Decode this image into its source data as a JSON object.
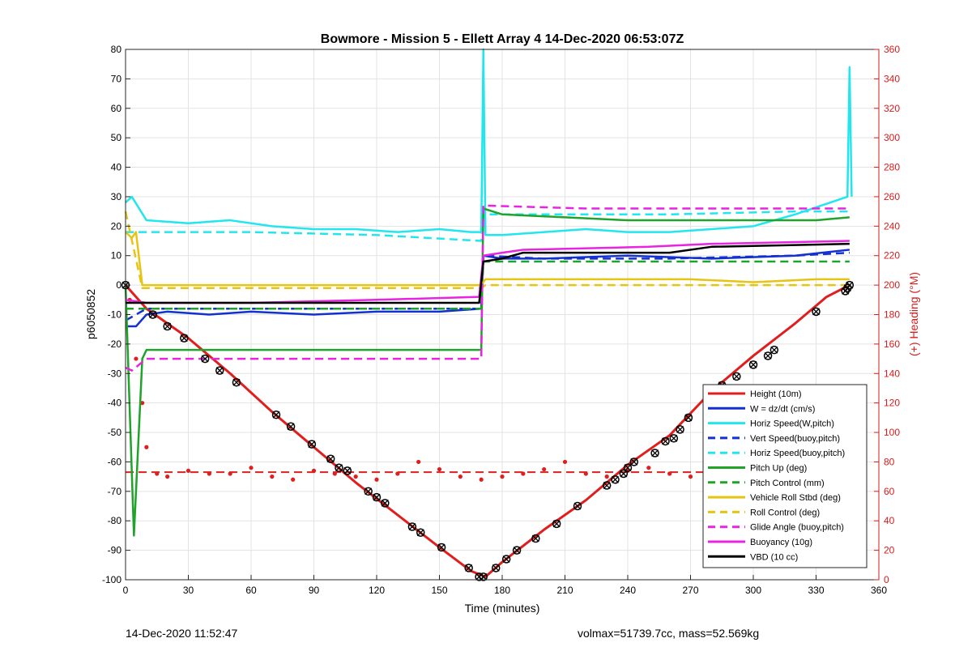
{
  "chart_data": {
    "type": "line",
    "title": "Bowmore - Mission 5 - Ellett Array 4 14-Dec-2020 06:53:07Z",
    "xlabel": "Time (minutes)",
    "ylabel": "p6050852",
    "ylabel_right": "(+) Heading (°M)",
    "xlim": [
      0,
      360
    ],
    "ylim": [
      -100,
      80
    ],
    "ylim_right": [
      0,
      360
    ],
    "xticks": [
      0,
      30,
      60,
      90,
      120,
      150,
      180,
      210,
      240,
      270,
      300,
      330,
      360
    ],
    "yticks": [
      -100,
      -90,
      -80,
      -70,
      -60,
      -50,
      -40,
      -30,
      -20,
      -10,
      0,
      10,
      20,
      30,
      40,
      50,
      60,
      70,
      80
    ],
    "yticks_right": [
      0,
      20,
      40,
      60,
      80,
      100,
      120,
      140,
      160,
      180,
      200,
      220,
      240,
      260,
      280,
      300,
      320,
      340,
      360
    ],
    "grid": true,
    "legend_position": "bottom-right",
    "series": [
      {
        "name": "Height (10m)",
        "color": "#e01e1e",
        "style": "solid",
        "width": 3,
        "x": [
          0,
          10,
          30,
          50,
          70,
          90,
          110,
          130,
          150,
          165,
          172,
          180,
          200,
          220,
          240,
          260,
          280,
          300,
          320,
          335,
          346
        ],
        "y": [
          0,
          -8,
          -18,
          -30,
          -43,
          -55,
          -67,
          -78,
          -89,
          -97,
          -99,
          -94,
          -83,
          -73,
          -61,
          -51,
          -36,
          -24,
          -13,
          -4,
          0
        ]
      },
      {
        "name": "W = dz/dt (cm/s)",
        "color": "#1330d0",
        "style": "solid",
        "width": 2.5,
        "x": [
          0,
          5,
          10,
          20,
          40,
          60,
          90,
          120,
          150,
          170,
          171,
          180,
          200,
          240,
          280,
          320,
          346
        ],
        "y": [
          -14,
          -14,
          -10,
          -9,
          -10,
          -9,
          -10,
          -9,
          -9,
          -8,
          10,
          9,
          9,
          10,
          9,
          10,
          12
        ]
      },
      {
        "name": "Horiz Speed(W,pitch)",
        "color": "#22e6ee",
        "style": "solid",
        "width": 2.5,
        "x": [
          0,
          3,
          10,
          30,
          50,
          70,
          90,
          110,
          130,
          150,
          165,
          170,
          171,
          172,
          180,
          200,
          220,
          240,
          260,
          280,
          300,
          320,
          345,
          346,
          347
        ],
        "y": [
          28,
          30,
          22,
          21,
          22,
          20,
          19,
          19,
          18,
          19,
          18,
          18,
          80,
          17,
          17,
          18,
          19,
          18,
          18,
          19,
          20,
          24,
          30,
          74,
          30
        ]
      },
      {
        "name": "Vert Speed(buoy,pitch)",
        "color": "#1330d0",
        "style": "dashed",
        "width": 2.5,
        "x": [
          0,
          10,
          60,
          120,
          170,
          171,
          200,
          260,
          320,
          346
        ],
        "y": [
          -12,
          -8,
          -8,
          -8,
          -8,
          10,
          9,
          9,
          10,
          11
        ]
      },
      {
        "name": "Horiz Speed(buoy,pitch)",
        "color": "#22e6ee",
        "style": "dashed",
        "width": 2.5,
        "x": [
          0,
          10,
          60,
          120,
          170,
          171,
          200,
          260,
          320,
          346
        ],
        "y": [
          18,
          18,
          18,
          17,
          15,
          24,
          24,
          24,
          25,
          25
        ]
      },
      {
        "name": "Pitch Up (deg)",
        "color": "#1fa32a",
        "style": "solid",
        "width": 2.5,
        "x": [
          0,
          4,
          8,
          10,
          30,
          60,
          90,
          120,
          150,
          170,
          171,
          180,
          210,
          240,
          270,
          300,
          330,
          346
        ],
        "y": [
          0,
          -85,
          -25,
          -22,
          -22,
          -22,
          -22,
          -22,
          -22,
          -22,
          26,
          24,
          23,
          22,
          22,
          22,
          22,
          23
        ]
      },
      {
        "name": "Pitch Control (mm)",
        "color": "#1fa32a",
        "style": "dashed",
        "width": 2.5,
        "x": [
          0,
          10,
          60,
          120,
          170,
          171,
          220,
          280,
          346
        ],
        "y": [
          -8,
          -8,
          -8,
          -8,
          -8,
          8,
          8,
          8,
          8
        ]
      },
      {
        "name": "Vehicle Roll Stbd (deg)",
        "color": "#e6c414",
        "style": "solid",
        "width": 2.5,
        "x": [
          0,
          3,
          5,
          8,
          30,
          60,
          90,
          120,
          150,
          170,
          172,
          180,
          210,
          240,
          270,
          300,
          330,
          346
        ],
        "y": [
          18,
          16,
          18,
          0,
          0,
          0,
          0,
          0,
          0,
          0,
          2,
          2,
          2,
          2,
          2,
          1,
          2,
          2
        ]
      },
      {
        "name": "Roll Control (deg)",
        "color": "#e6c414",
        "style": "dashed",
        "width": 2.5,
        "x": [
          0,
          8,
          60,
          120,
          170,
          172,
          220,
          280,
          346
        ],
        "y": [
          25,
          -1,
          -1,
          -1,
          -1,
          0,
          0,
          0,
          0
        ]
      },
      {
        "name": "Glide Angle (buoy,pitch)",
        "color": "#e824e0",
        "style": "dashed",
        "width": 2.5,
        "x": [
          0,
          3,
          10,
          60,
          120,
          170,
          171,
          220,
          280,
          346
        ],
        "y": [
          -28,
          -29,
          -25,
          -25,
          -25,
          -25,
          27,
          26,
          26,
          26
        ]
      },
      {
        "name": "Buoyancy (10g)",
        "color": "#e824e0",
        "style": "solid",
        "width": 2.5,
        "x": [
          0,
          10,
          60,
          120,
          169,
          171,
          180,
          190,
          250,
          280,
          346
        ],
        "y": [
          -5,
          -6,
          -6,
          -5,
          -4,
          10,
          11,
          12,
          13,
          14,
          15
        ]
      },
      {
        "name": "VBD (10 cc)",
        "color": "#000000",
        "style": "solid",
        "width": 2.5,
        "x": [
          0,
          10,
          60,
          120,
          169,
          171,
          180,
          190,
          260,
          280,
          346
        ],
        "y": [
          -6,
          -6,
          -6,
          -6,
          -6,
          8,
          9,
          11,
          11,
          13,
          14
        ]
      }
    ],
    "heading": {
      "axis": "right",
      "color": "#e01e1e",
      "dashed_level": 73,
      "x": [
        2,
        5,
        8,
        10,
        15,
        20,
        30,
        40,
        50,
        60,
        70,
        80,
        90,
        100,
        110,
        120,
        130,
        140,
        150,
        160,
        170,
        180,
        190,
        200,
        210,
        220,
        230,
        240,
        250,
        260,
        270,
        280,
        290,
        300,
        310,
        320,
        330,
        340
      ],
      "y": [
        190,
        150,
        120,
        90,
        72,
        70,
        74,
        72,
        72,
        76,
        70,
        68,
        74,
        72,
        70,
        68,
        72,
        80,
        75,
        70,
        68,
        70,
        72,
        75,
        80,
        72,
        70,
        74,
        76,
        72,
        70,
        72,
        74,
        76,
        75,
        74,
        72,
        78
      ]
    },
    "markers": {
      "series": "Height (10m)",
      "x": [
        0,
        13,
        20,
        28,
        38,
        45,
        53,
        72,
        79,
        89,
        98,
        102,
        106,
        116,
        120,
        124,
        137,
        141,
        151,
        164,
        169,
        171,
        177,
        182,
        187,
        196,
        206,
        216,
        230,
        234,
        238,
        240,
        243,
        253,
        258,
        262,
        265,
        269,
        280,
        285,
        292,
        300,
        307,
        310,
        330,
        344,
        345,
        346
      ],
      "y": [
        0,
        -10,
        -14,
        -18,
        -25,
        -29,
        -33,
        -44,
        -48,
        -54,
        -59,
        -62,
        -63,
        -70,
        -72,
        -74,
        -82,
        -84,
        -89,
        -96,
        -99,
        -99,
        -96,
        -93,
        -90,
        -86,
        -81,
        -75,
        -68,
        -66,
        -64,
        -62,
        -60,
        -57,
        -53,
        -52,
        -49,
        -45,
        -38,
        -34,
        -31,
        -27,
        -24,
        -22,
        -9,
        -2,
        -1,
        0
      ]
    }
  },
  "footer": {
    "left": "14-Dec-2020 11:52:47",
    "right": "volmax=51739.7cc, mass=52.569kg"
  }
}
